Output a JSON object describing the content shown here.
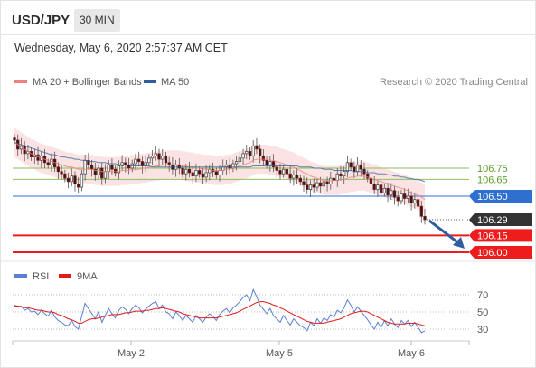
{
  "header": {
    "pair": "USD/JPY",
    "timeframe": "30 MIN",
    "datetime": "Wednesday, May 6, 2020 2:57:37 AM CET"
  },
  "colors": {
    "bollinger": "#f08080",
    "ma50": "#2f5d9e",
    "resistance": "#8fbf5f",
    "pivot": "#2f6fd0",
    "support": "#ee1c1c",
    "last": "#333333",
    "rsi": "#5b7fd6",
    "rsi_ma": "#e11a1a",
    "arrow": "#2f5d9e"
  },
  "chart_data": [
    {
      "type": "line",
      "legend": [
        "MA 20 + Bollinger Bands",
        "MA 50"
      ],
      "attribution": "Research © 2020 Trading Central",
      "x_ticks": [
        "May 2",
        "May 5",
        "May 6"
      ],
      "ylim": [
        105.95,
        107.05
      ],
      "levels": [
        {
          "value": 106.75,
          "label": "106.75",
          "kind": "resistance"
        },
        {
          "value": 106.65,
          "label": "106.65",
          "kind": "resistance"
        },
        {
          "value": 106.5,
          "label": "106.50",
          "kind": "pivot"
        },
        {
          "value": 106.29,
          "label": "106.29",
          "kind": "last"
        },
        {
          "value": 106.15,
          "label": "106.15",
          "kind": "support"
        },
        {
          "value": 106.0,
          "label": "106.00",
          "kind": "support"
        }
      ],
      "closes": [
        107.0,
        106.92,
        106.95,
        106.88,
        106.9,
        106.85,
        106.87,
        106.82,
        106.86,
        106.8,
        106.78,
        106.83,
        106.76,
        106.72,
        106.7,
        106.66,
        106.63,
        106.68,
        106.61,
        106.58,
        106.7,
        106.82,
        106.78,
        106.74,
        106.69,
        106.75,
        106.66,
        106.72,
        106.78,
        106.74,
        106.71,
        106.77,
        106.8,
        106.78,
        106.75,
        106.79,
        106.83,
        106.81,
        106.77,
        106.8,
        106.84,
        106.86,
        106.88,
        106.83,
        106.86,
        106.8,
        106.78,
        106.74,
        106.78,
        106.75,
        106.7,
        106.74,
        106.71,
        106.68,
        106.73,
        106.7,
        106.67,
        106.71,
        106.74,
        106.72,
        106.69,
        106.73,
        106.76,
        106.78,
        106.75,
        106.79,
        106.81,
        106.84,
        106.88,
        106.9,
        106.86,
        106.95,
        106.92,
        106.86,
        106.82,
        106.78,
        106.81,
        106.76,
        106.73,
        106.7,
        106.74,
        106.7,
        106.66,
        106.69,
        106.66,
        106.63,
        106.6,
        106.56,
        106.6,
        106.58,
        106.62,
        106.59,
        106.63,
        106.61,
        106.66,
        106.64,
        106.7,
        106.68,
        106.72,
        106.8,
        106.76,
        106.72,
        106.78,
        106.74,
        106.7,
        106.66,
        106.61,
        106.56,
        106.6,
        106.53,
        106.57,
        106.51,
        106.55,
        106.49,
        106.46,
        106.52,
        106.48,
        106.5,
        106.44,
        106.47,
        106.41,
        106.32,
        106.29
      ],
      "ma20": [
        106.98,
        106.96,
        106.94,
        106.92,
        106.9,
        106.88,
        106.87,
        106.85,
        106.84,
        106.83,
        106.82,
        106.81,
        106.8,
        106.79,
        106.78,
        106.77,
        106.76,
        106.76,
        106.75,
        106.74,
        106.74,
        106.74,
        106.74,
        106.74,
        106.73,
        106.73,
        106.72,
        106.72,
        106.72,
        106.72,
        106.72,
        106.72,
        106.73,
        106.73,
        106.73,
        106.74,
        106.74,
        106.74,
        106.75,
        106.75,
        106.76,
        106.76,
        106.77,
        106.77,
        106.78,
        106.78,
        106.78,
        106.78,
        106.78,
        106.78,
        106.77,
        106.77,
        106.76,
        106.76,
        106.75,
        106.75,
        106.74,
        106.74,
        106.74,
        106.73,
        106.73,
        106.73,
        106.73,
        106.74,
        106.74,
        106.75,
        106.76,
        106.77,
        106.78,
        106.79,
        106.8,
        106.82,
        106.83,
        106.83,
        106.83,
        106.83,
        106.82,
        106.82,
        106.81,
        106.8,
        106.79,
        106.78,
        106.77,
        106.76,
        106.74,
        106.73,
        106.71,
        106.7,
        106.68,
        106.67,
        106.66,
        106.65,
        106.64,
        106.64,
        106.64,
        106.64,
        106.64,
        106.65,
        106.65,
        106.66,
        106.67,
        106.67,
        106.68,
        106.68,
        106.68,
        106.67,
        106.66,
        106.65,
        106.64,
        106.63,
        106.62,
        106.61,
        106.6,
        106.59,
        106.58,
        106.57,
        106.56,
        106.55,
        106.53,
        106.52,
        106.51,
        106.49,
        106.47
      ],
      "ma50": [
        106.98,
        106.97,
        106.96,
        106.95,
        106.94,
        106.93,
        106.92,
        106.91,
        106.9,
        106.89,
        106.88,
        106.87,
        106.87,
        106.86,
        106.85,
        106.85,
        106.84,
        106.84,
        106.83,
        106.83,
        106.82,
        106.82,
        106.81,
        106.81,
        106.81,
        106.8,
        106.8,
        106.8,
        106.79,
        106.79,
        106.79,
        106.78,
        106.78,
        106.78,
        106.78,
        106.77,
        106.77,
        106.77,
        106.77,
        106.77,
        106.77,
        106.76,
        106.76,
        106.76,
        106.76,
        106.76,
        106.76,
        106.76,
        106.76,
        106.76,
        106.76,
        106.76,
        106.76,
        106.76,
        106.76,
        106.76,
        106.76,
        106.76,
        106.76,
        106.76,
        106.76,
        106.76,
        106.76,
        106.76,
        106.76,
        106.76,
        106.76,
        106.76,
        106.76,
        106.76,
        106.76,
        106.77,
        106.77,
        106.77,
        106.77,
        106.77,
        106.77,
        106.77,
        106.77,
        106.77,
        106.77,
        106.77,
        106.77,
        106.77,
        106.77,
        106.76,
        106.76,
        106.76,
        106.76,
        106.75,
        106.75,
        106.75,
        106.74,
        106.74,
        106.74,
        106.73,
        106.73,
        106.73,
        106.73,
        106.73,
        106.73,
        106.72,
        106.72,
        106.72,
        106.72,
        106.71,
        106.71,
        106.71,
        106.7,
        106.7,
        106.7,
        106.69,
        106.69,
        106.68,
        106.68,
        106.67,
        106.67,
        106.66,
        106.66,
        106.65,
        106.65,
        106.64,
        106.63
      ],
      "bb_width": 0.13,
      "projection": {
        "from": 106.29,
        "to": 106.0
      }
    },
    {
      "type": "line",
      "legend": [
        "RSI",
        "9MA"
      ],
      "yticks": [
        70,
        50,
        30
      ],
      "ylim": [
        20,
        80
      ],
      "rsi": [
        58,
        56,
        57,
        52,
        54,
        50,
        51,
        47,
        52,
        48,
        45,
        52,
        44,
        40,
        38,
        35,
        34,
        40,
        33,
        30,
        45,
        60,
        54,
        48,
        42,
        50,
        38,
        46,
        54,
        48,
        43,
        52,
        56,
        53,
        48,
        54,
        58,
        55,
        49,
        53,
        57,
        60,
        62,
        54,
        58,
        50,
        48,
        42,
        50,
        46,
        40,
        46,
        42,
        38,
        46,
        42,
        38,
        44,
        48,
        45,
        40,
        47,
        51,
        54,
        49,
        55,
        58,
        62,
        67,
        70,
        63,
        76,
        68,
        58,
        53,
        48,
        54,
        46,
        42,
        38,
        46,
        40,
        35,
        42,
        38,
        34,
        32,
        28,
        38,
        34,
        42,
        37,
        43,
        40,
        47,
        44,
        52,
        49,
        55,
        64,
        58,
        50,
        56,
        51,
        46,
        41,
        35,
        30,
        38,
        32,
        40,
        34,
        42,
        36,
        32,
        40,
        36,
        40,
        33,
        38,
        32,
        26,
        28
      ],
      "rsi_ma": [
        57,
        57,
        56,
        55,
        55,
        54,
        53,
        52,
        52,
        51,
        50,
        50,
        49,
        47,
        46,
        44,
        42,
        41,
        39,
        37,
        37,
        39,
        41,
        42,
        42,
        43,
        44,
        45,
        46,
        47,
        47,
        47,
        48,
        49,
        49,
        50,
        51,
        51,
        51,
        52,
        52,
        53,
        54,
        54,
        55,
        54,
        53,
        52,
        51,
        50,
        48,
        47,
        46,
        45,
        44,
        43,
        43,
        43,
        43,
        43,
        43,
        44,
        45,
        46,
        47,
        48,
        49,
        51,
        53,
        55,
        57,
        59,
        61,
        62,
        62,
        61,
        60,
        58,
        57,
        55,
        53,
        51,
        49,
        47,
        45,
        43,
        41,
        39,
        38,
        37,
        37,
        37,
        37,
        38,
        39,
        40,
        41,
        42,
        44,
        46,
        48,
        49,
        50,
        51,
        51,
        50,
        48,
        46,
        44,
        42,
        40,
        38,
        37,
        36,
        36,
        36,
        36,
        37,
        37,
        37,
        36,
        35,
        34
      ]
    }
  ]
}
